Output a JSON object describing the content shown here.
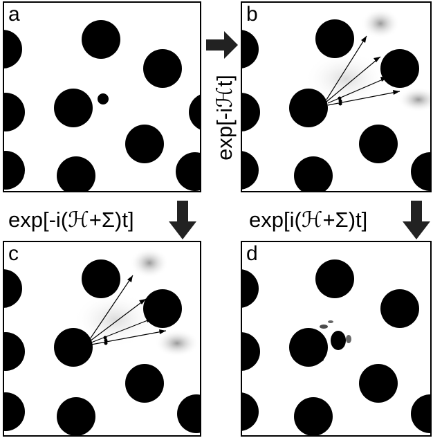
{
  "panels": [
    {
      "label": "a"
    },
    {
      "label": "b"
    },
    {
      "label": "c"
    },
    {
      "label": "d"
    }
  ],
  "operators": {
    "a_to_b": "exp[-iℋt]",
    "a_to_c": "exp[-i(ℋ+Σ)t]",
    "b_to_d": "exp[i(ℋ+Σ)t]"
  },
  "colors": {
    "disk": "#000000",
    "frame": "#000000",
    "background": "#ffffff"
  }
}
